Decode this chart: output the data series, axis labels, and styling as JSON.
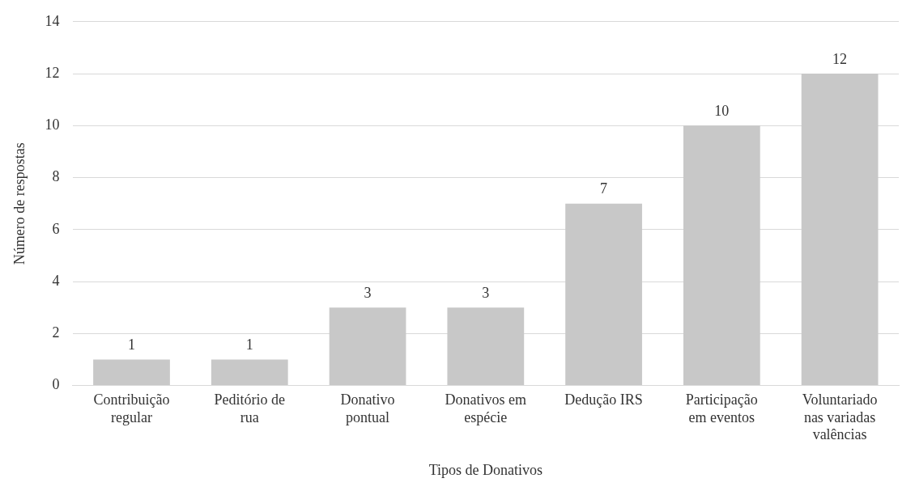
{
  "chart_data": {
    "type": "bar",
    "xlabel": "Tipos de Donativos",
    "ylabel": "Número de respostas",
    "categories": [
      "Contribuição regular",
      "Peditório de rua",
      "Donativo pontual",
      "Donativos em espécie",
      "Dedução IRS",
      "Participação em eventos",
      "Voluntariado nas variadas valências"
    ],
    "values": [
      1,
      1,
      3,
      3,
      7,
      10,
      12
    ],
    "color": "#c8c8c8",
    "ylim": [
      0,
      14
    ],
    "yticks": [
      0,
      2,
      4,
      6,
      8,
      10,
      12,
      14
    ],
    "grid": "y",
    "data_labels": true,
    "legend": false
  }
}
